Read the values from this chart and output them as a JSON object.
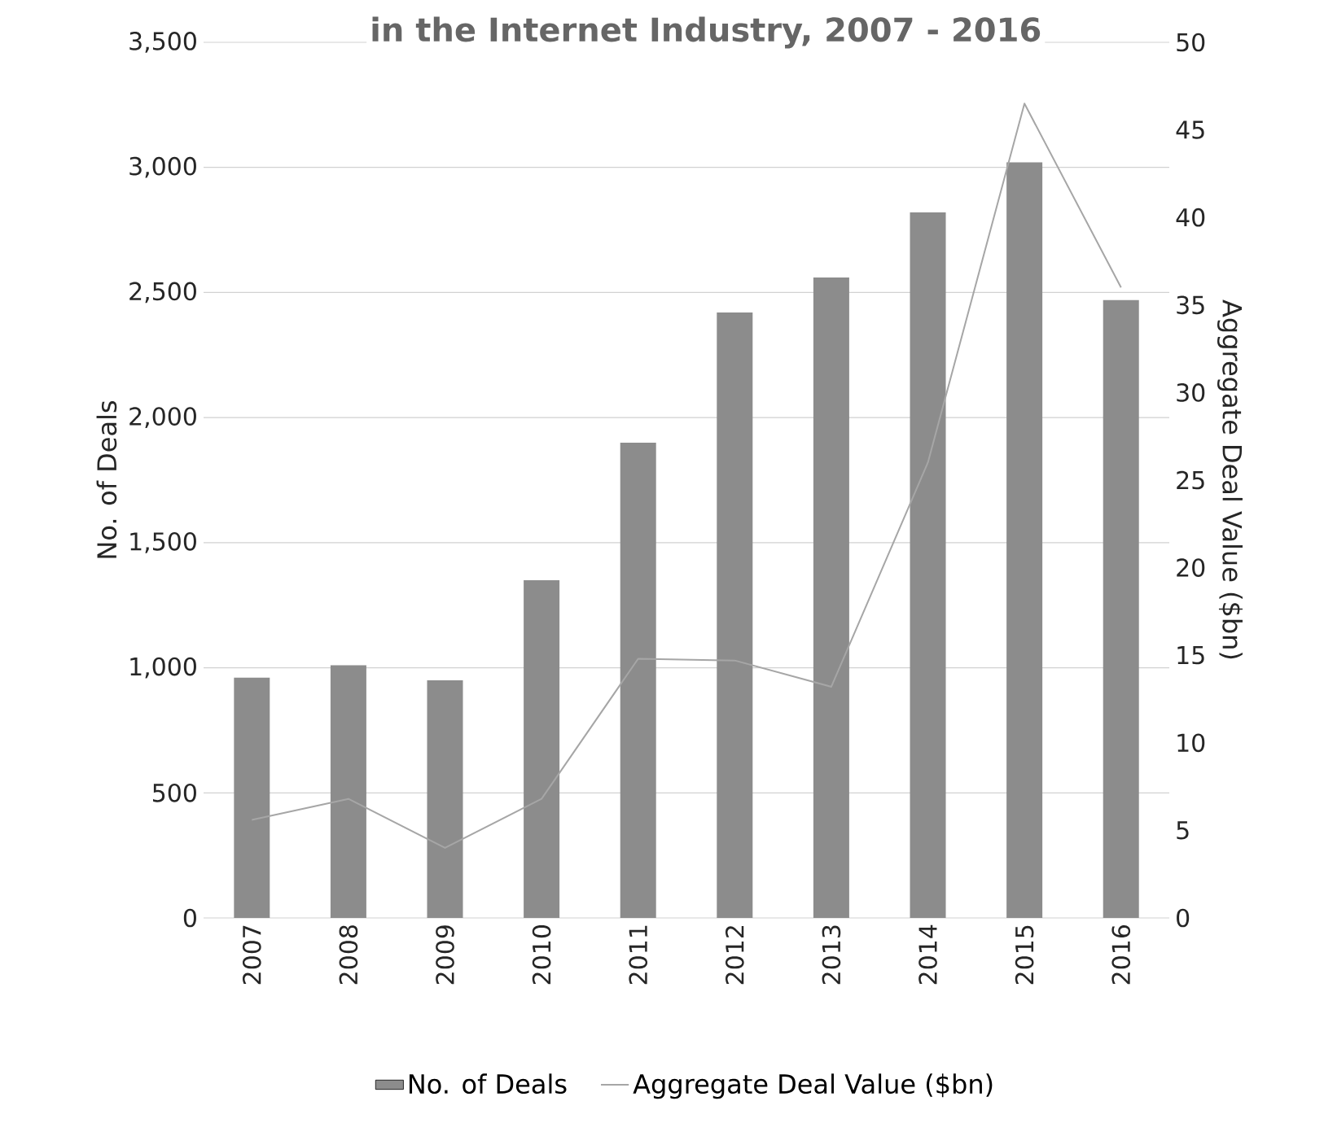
{
  "chart_data": {
    "type": "bar",
    "title": "in the Internet Industry, 2007 - 2016",
    "ylabel": "No. of Deals",
    "y2label": "Aggregate Deal Value ($bn)",
    "categories": [
      "2007",
      "2008",
      "2009",
      "2010",
      "2011",
      "2012",
      "2013",
      "2014",
      "2015",
      "2016"
    ],
    "series": [
      {
        "name": "No. of Deals",
        "color": "#8c8c8c",
        "values": [
          960,
          1010,
          950,
          1350,
          1900,
          2420,
          2560,
          2820,
          3020,
          2470
        ]
      },
      {
        "name": "Aggregate Deal Value ($bn)",
        "type": "line",
        "axis": "y2",
        "color": "#a6a6a6",
        "values": [
          5.6,
          6.8,
          4.0,
          6.8,
          14.8,
          14.7,
          13.2,
          26,
          46.5,
          36
        ]
      }
    ],
    "ylim": [
      0,
      3500
    ],
    "yticks": [
      {
        "value": 0,
        "label": "0"
      },
      {
        "value": 500,
        "label": "500"
      },
      {
        "value": 1000,
        "label": "1,000"
      },
      {
        "value": 1500,
        "label": "1,500"
      },
      {
        "value": 2000,
        "label": "2,000"
      },
      {
        "value": 2500,
        "label": "2,500"
      },
      {
        "value": 3000,
        "label": "3,000"
      },
      {
        "value": 3500,
        "label": "3,500"
      }
    ],
    "y2lim": [
      0,
      50
    ],
    "y2ticks": [
      0,
      5,
      10,
      15,
      20,
      25,
      30,
      35,
      40,
      45,
      50
    ],
    "grid": "y",
    "legend": "bottom"
  }
}
